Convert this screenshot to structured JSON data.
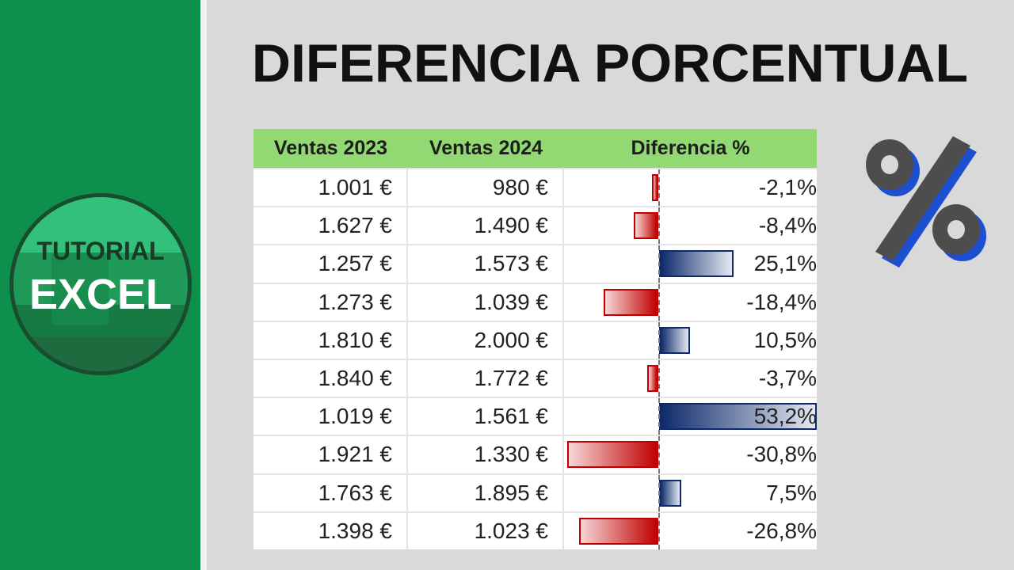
{
  "logo": {
    "line1": "TUTORIAL",
    "line2": "EXCEL"
  },
  "title": "DIFERENCIA PORCENTUAL",
  "table": {
    "headers": [
      "Ventas 2023",
      "Ventas 2024",
      "Diferencia %"
    ],
    "rows": [
      {
        "v2023": "1.001 €",
        "v2024": "980 €",
        "diff": "-2,1%",
        "value": -2.1
      },
      {
        "v2023": "1.627 €",
        "v2024": "1.490 €",
        "diff": "-8,4%",
        "value": -8.4
      },
      {
        "v2023": "1.257 €",
        "v2024": "1.573 €",
        "diff": "25,1%",
        "value": 25.1
      },
      {
        "v2023": "1.273 €",
        "v2024": "1.039 €",
        "diff": "-18,4%",
        "value": -18.4
      },
      {
        "v2023": "1.810 €",
        "v2024": "2.000 €",
        "diff": "10,5%",
        "value": 10.5
      },
      {
        "v2023": "1.840 €",
        "v2024": "1.772 €",
        "diff": "-3,7%",
        "value": -3.7
      },
      {
        "v2023": "1.019 €",
        "v2024": "1.561 €",
        "diff": "53,2%",
        "value": 53.2
      },
      {
        "v2023": "1.921 €",
        "v2024": "1.330 €",
        "diff": "-30,8%",
        "value": -30.8
      },
      {
        "v2023": "1.763 €",
        "v2024": "1.895 €",
        "diff": "7,5%",
        "value": 7.5
      },
      {
        "v2023": "1.398 €",
        "v2024": "1.023 €",
        "diff": "-26,8%",
        "value": -26.8
      }
    ]
  },
  "colors": {
    "header": "#92d873",
    "negative": "#c00000",
    "positive": "#0e2a6b",
    "sidebar": "#0f8f4c"
  },
  "icons": [
    "percent-icon"
  ]
}
